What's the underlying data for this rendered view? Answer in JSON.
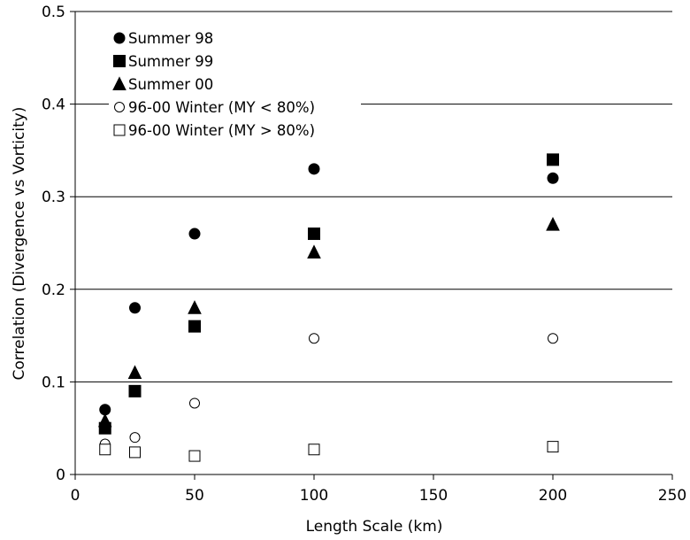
{
  "chart_data": {
    "type": "scatter",
    "xlabel": "Length Scale (km)",
    "ylabel": "Correlation (Divergence vs Vorticity)",
    "xlim": [
      0,
      250
    ],
    "ylim": [
      0,
      0.5
    ],
    "x_ticks": [
      0,
      50,
      100,
      150,
      200,
      250
    ],
    "y_ticks": [
      0,
      0.1,
      0.2,
      0.3,
      0.4,
      0.5
    ],
    "x_tick_labels": [
      "0",
      "50",
      "100",
      "150",
      "200",
      "250"
    ],
    "y_tick_labels": [
      "0",
      "0.1",
      "0.2",
      "0.3",
      "0.4",
      "0.5"
    ],
    "grid": "horizontal major gridlines",
    "legend_position": "top-left",
    "series": [
      {
        "name": "Summer 98",
        "marker": "filled-circle",
        "x": [
          12.5,
          25,
          50,
          100,
          200
        ],
        "y": [
          0.07,
          0.18,
          0.26,
          0.33,
          0.32
        ]
      },
      {
        "name": "Summer 99",
        "marker": "filled-square",
        "x": [
          12.5,
          25,
          50,
          100,
          200
        ],
        "y": [
          0.05,
          0.09,
          0.16,
          0.26,
          0.34
        ]
      },
      {
        "name": "Summer 00",
        "marker": "filled-triangle",
        "x": [
          12.5,
          25,
          50,
          100,
          200
        ],
        "y": [
          0.058,
          0.11,
          0.18,
          0.24,
          0.27
        ]
      },
      {
        "name": "96-00 Winter (MY < 80%)",
        "marker": "open-circle",
        "x": [
          12.5,
          25,
          50,
          100,
          200
        ],
        "y": [
          0.033,
          0.04,
          0.077,
          0.147,
          0.147
        ]
      },
      {
        "name": "96-00 Winter (MY > 80%)",
        "marker": "open-square",
        "x": [
          12.5,
          25,
          50,
          100,
          200
        ],
        "y": [
          0.027,
          0.024,
          0.02,
          0.027,
          0.03
        ]
      }
    ]
  }
}
